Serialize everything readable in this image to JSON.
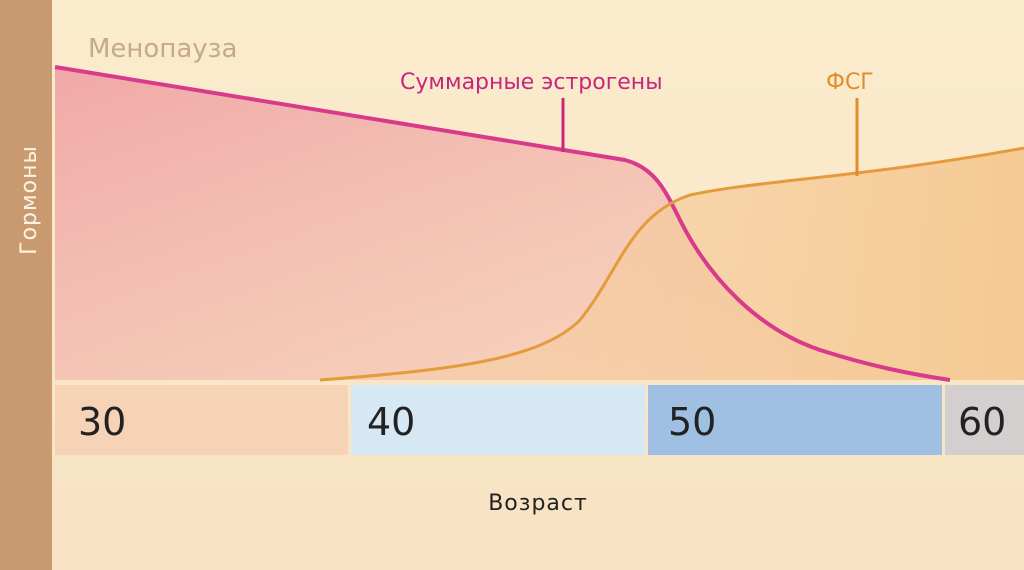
{
  "title": "Менопауза",
  "y_axis_label": "Гормоны",
  "x_axis_label": "Возраст",
  "age_bands": [
    "30",
    "40",
    "50",
    "60"
  ],
  "curves": [
    "Суммарные эстрогены",
    "ФСГ"
  ]
}
